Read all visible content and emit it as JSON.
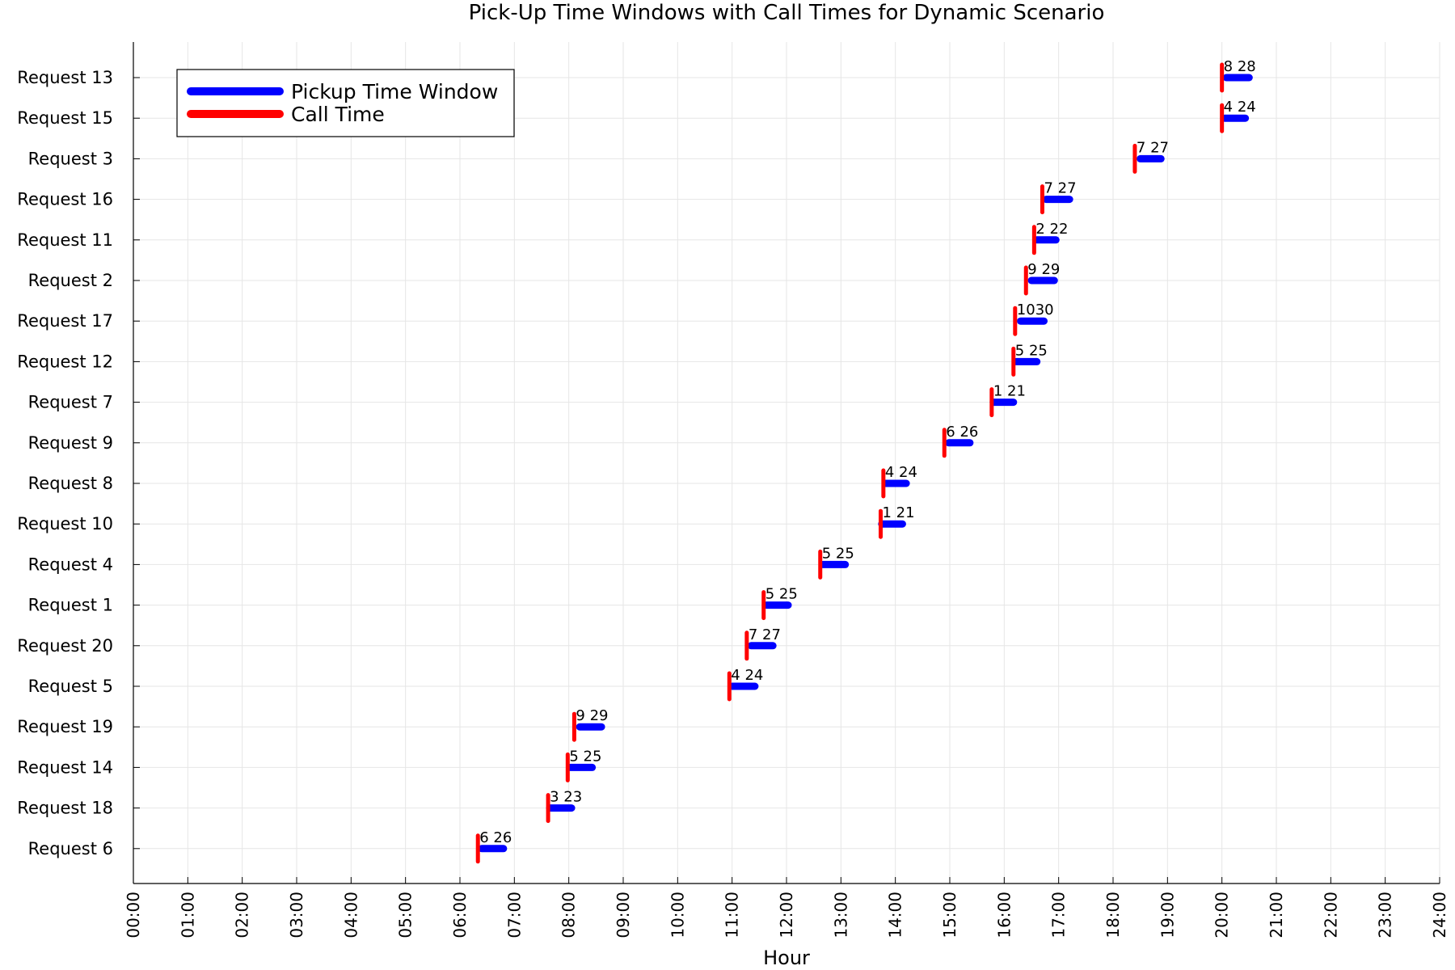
{
  "chart_data": {
    "type": "gantt",
    "title": "Pick-Up Time Windows with Call Times for Dynamic Scenario",
    "xlabel": "Hour",
    "ylabel": "",
    "xlim_hours": [
      0,
      24
    ],
    "x_ticks": [
      "00:00",
      "01:00",
      "02:00",
      "03:00",
      "04:00",
      "05:00",
      "06:00",
      "07:00",
      "08:00",
      "09:00",
      "10:00",
      "11:00",
      "12:00",
      "13:00",
      "14:00",
      "15:00",
      "16:00",
      "17:00",
      "18:00",
      "19:00",
      "20:00",
      "21:00",
      "22:00",
      "23:00",
      "24:00"
    ],
    "grid": true,
    "legend": {
      "placement": "top-left",
      "entries": [
        {
          "name": "Pickup Time Window",
          "color": "#0000ff"
        },
        {
          "name": "Call Time",
          "color": "#ff0000"
        }
      ]
    },
    "rows": [
      {
        "label": "Request 13",
        "call": 20.0,
        "window_start": 20.08,
        "window_end": 20.5,
        "annotation": "8 28"
      },
      {
        "label": "Request 15",
        "call": 20.0,
        "window_start": 20.05,
        "window_end": 20.43,
        "annotation": "4 24"
      },
      {
        "label": "Request 3",
        "call": 18.4,
        "window_start": 18.5,
        "window_end": 18.88,
        "annotation": "7 27"
      },
      {
        "label": "Request 16",
        "call": 16.7,
        "window_start": 16.77,
        "window_end": 17.2,
        "annotation": "7 27"
      },
      {
        "label": "Request 11",
        "call": 16.55,
        "window_start": 16.6,
        "window_end": 16.95,
        "annotation": "2 22"
      },
      {
        "label": "Request 2",
        "call": 16.4,
        "window_start": 16.5,
        "window_end": 16.92,
        "annotation": "9 29"
      },
      {
        "label": "Request 17",
        "call": 16.2,
        "window_start": 16.3,
        "window_end": 16.73,
        "annotation": "1030"
      },
      {
        "label": "Request 12",
        "call": 16.17,
        "window_start": 16.22,
        "window_end": 16.6,
        "annotation": "5 25"
      },
      {
        "label": "Request 7",
        "call": 15.77,
        "window_start": 15.8,
        "window_end": 16.17,
        "annotation": "1 21"
      },
      {
        "label": "Request 9",
        "call": 14.9,
        "window_start": 14.98,
        "window_end": 15.37,
        "annotation": "6 26"
      },
      {
        "label": "Request 8",
        "call": 13.78,
        "window_start": 13.82,
        "window_end": 14.2,
        "annotation": "4 24"
      },
      {
        "label": "Request 10",
        "call": 13.73,
        "window_start": 13.75,
        "window_end": 14.13,
        "annotation": "1 21"
      },
      {
        "label": "Request 4",
        "call": 12.62,
        "window_start": 12.67,
        "window_end": 13.08,
        "annotation": "5 25"
      },
      {
        "label": "Request 1",
        "call": 11.58,
        "window_start": 11.63,
        "window_end": 12.03,
        "annotation": "5 25"
      },
      {
        "label": "Request 20",
        "call": 11.27,
        "window_start": 11.35,
        "window_end": 11.75,
        "annotation": "7 27"
      },
      {
        "label": "Request 5",
        "call": 10.95,
        "window_start": 11.0,
        "window_end": 11.42,
        "annotation": "4 24"
      },
      {
        "label": "Request 19",
        "call": 8.1,
        "window_start": 8.2,
        "window_end": 8.6,
        "annotation": "9 29"
      },
      {
        "label": "Request 14",
        "call": 7.98,
        "window_start": 8.03,
        "window_end": 8.43,
        "annotation": "5 25"
      },
      {
        "label": "Request 18",
        "call": 7.62,
        "window_start": 7.65,
        "window_end": 8.05,
        "annotation": "3 23"
      },
      {
        "label": "Request 6",
        "call": 6.33,
        "window_start": 6.4,
        "window_end": 6.8,
        "annotation": "6 26"
      }
    ]
  }
}
